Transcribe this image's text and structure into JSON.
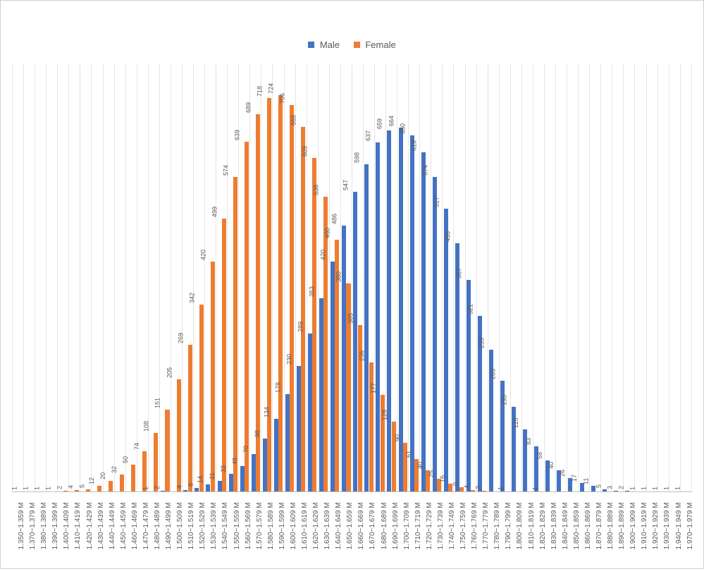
{
  "legend": {
    "male_label": "Male",
    "female_label": "Female"
  },
  "chart": {
    "type": "grouped-bar",
    "colors": {
      "male": "#4472c4",
      "female": "#ed7d31",
      "border": "#d0d0d0",
      "gridline": "#e6e6e6",
      "axis": "#bfbfbf",
      "text": "#595959",
      "background": "#ffffff"
    },
    "ylim": [
      0,
      780
    ],
    "bar_width_pct": 40,
    "label_fontsize": 9,
    "tick_fontsize": 10,
    "legend_fontsize": 13,
    "categories": [
      {
        "label": "1.350~1.359 M",
        "male": null,
        "female": 1
      },
      {
        "label": "1.370~1.379 M",
        "male": null,
        "female": 1
      },
      {
        "label": "1.380~1.389 M",
        "male": null,
        "female": 1
      },
      {
        "label": "1.390~1.399 M",
        "male": null,
        "female": 1
      },
      {
        "label": "1.400~1.409 M",
        "male": null,
        "female": 2
      },
      {
        "label": "1.410~1.419 M",
        "male": null,
        "female": 4
      },
      {
        "label": "1.420~1.429 M",
        "male": null,
        "female": 5
      },
      {
        "label": "1.430~1.439 M",
        "male": null,
        "female": 12
      },
      {
        "label": "1.440~1.449 M",
        "male": null,
        "female": 20
      },
      {
        "label": "1.450~1.459 M",
        "male": null,
        "female": 32
      },
      {
        "label": "1.460~1.469 M",
        "male": null,
        "female": 50
      },
      {
        "label": "1.470~1.479 M",
        "male": null,
        "female": 74
      },
      {
        "label": "1.480~1.489 M",
        "male": 1,
        "female": 108
      },
      {
        "label": "1.490~1.499 M",
        "male": 2,
        "female": 151
      },
      {
        "label": "1.500~1.509 M",
        "male": null,
        "female": 205
      },
      {
        "label": "1.510~1.519 M",
        "male": 4,
        "female": 269
      },
      {
        "label": "1.520~1.529 M",
        "male": 8,
        "female": 342
      },
      {
        "label": "1.530~1.539 M",
        "male": 14,
        "female": 420
      },
      {
        "label": "1.540~1.549 M",
        "male": 21,
        "female": 499
      },
      {
        "label": "1.550~1.559 M",
        "male": 33,
        "female": 574
      },
      {
        "label": "1.560~1.569 M",
        "male": 48,
        "female": 639
      },
      {
        "label": "1.570~1.579 M",
        "male": 70,
        "female": 689
      },
      {
        "label": "1.580~1.589 M",
        "male": 98,
        "female": 718
      },
      {
        "label": "1.590~1.599 M",
        "male": 134,
        "female": 724
      },
      {
        "label": "1.600~1.609 M",
        "male": 178,
        "female": 706
      },
      {
        "label": "1.610~1.619 M",
        "male": 230,
        "female": 666
      },
      {
        "label": "1.620~1.629 M",
        "male": 289,
        "female": 609
      },
      {
        "label": "1.630~1.639 M",
        "male": 353,
        "female": 538
      },
      {
        "label": "1.640~1.649 M",
        "male": 420,
        "female": 460
      },
      {
        "label": "1.650~1.659 M",
        "male": 486,
        "female": 380
      },
      {
        "label": "1.660~1.669 M",
        "male": 547,
        "female": 305
      },
      {
        "label": "1.670~1.679 M",
        "male": 598,
        "female": 236
      },
      {
        "label": "1.680~1.689 M",
        "male": 637,
        "female": 177
      },
      {
        "label": "1.690~1.699 M",
        "male": 659,
        "female": 128
      },
      {
        "label": "1.700~1.709 M",
        "male": 664,
        "female": 90
      },
      {
        "label": "1.710~1.719 M",
        "male": 650,
        "female": 61
      },
      {
        "label": "1.720~1.729 M",
        "male": 619,
        "female": 40
      },
      {
        "label": "1.730~1.739 M",
        "male": 574,
        "female": 25
      },
      {
        "label": "1.740~1.749 M",
        "male": 517,
        "female": 16
      },
      {
        "label": "1.750~1.759 M",
        "male": 453,
        "female": 9
      },
      {
        "label": "1.760~1.769 M",
        "male": 387,
        "female": 4
      },
      {
        "label": "1.770~1.779 M",
        "male": 321,
        "female": 2
      },
      {
        "label": "1.780~1.789 M",
        "male": 259,
        "female": null
      },
      {
        "label": "1.790~1.799 M",
        "male": 203,
        "female": 1
      },
      {
        "label": "1.800~1.809 M",
        "male": 155,
        "female": null
      },
      {
        "label": "1.810~1.819 M",
        "male": 115,
        "female": null
      },
      {
        "label": "1.820~1.829 M",
        "male": 83,
        "female": 1
      },
      {
        "label": "1.830~1.839 M",
        "male": 58,
        "female": null
      },
      {
        "label": "1.840~1.849 M",
        "male": 40,
        "female": null
      },
      {
        "label": "1.850~1.859 M",
        "male": 26,
        "female": null
      },
      {
        "label": "1.860~1.869 M",
        "male": 17,
        "female": null
      },
      {
        "label": "1.870~1.879 M",
        "male": 11,
        "female": null
      },
      {
        "label": "1.880~1.889 M",
        "male": 5,
        "female": null
      },
      {
        "label": "1.890~1.899 M",
        "male": 3,
        "female": null
      },
      {
        "label": "1.900~1.909 M",
        "male": 2,
        "female": null
      },
      {
        "label": "1.910~1.919 M",
        "male": 1,
        "female": null
      },
      {
        "label": "1.920~1.929 M",
        "male": 1,
        "female": null
      },
      {
        "label": "1.930~1.939 M",
        "male": 1,
        "female": null
      },
      {
        "label": "1.940~1.949 M",
        "male": 1,
        "female": null
      },
      {
        "label": "1.970~1.979 M",
        "male": 1,
        "female": null
      }
    ]
  }
}
